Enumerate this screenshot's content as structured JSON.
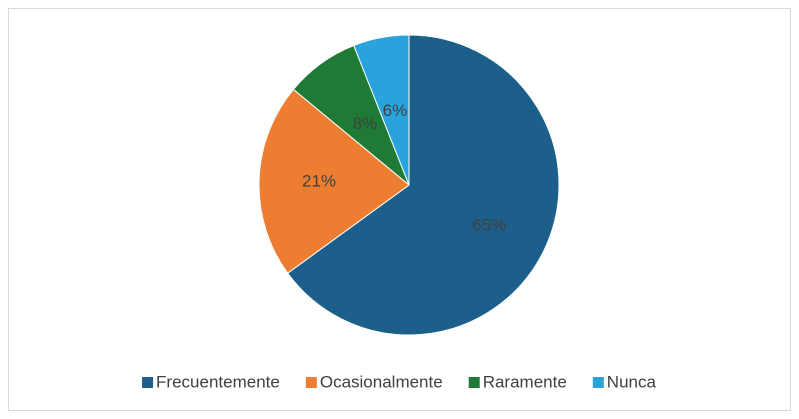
{
  "chart_data": {
    "type": "pie",
    "categories": [
      "Frecuentemente",
      "Ocasionalmente",
      "Raramente",
      "Nunca"
    ],
    "values": [
      65,
      21,
      8,
      6
    ],
    "value_labels": [
      "65%",
      "21%",
      "8%",
      "6%"
    ],
    "colors": [
      "#1b5f8a",
      "#ed7d31",
      "#1e7a34",
      "#29a3dc"
    ],
    "legend": "bottom"
  }
}
